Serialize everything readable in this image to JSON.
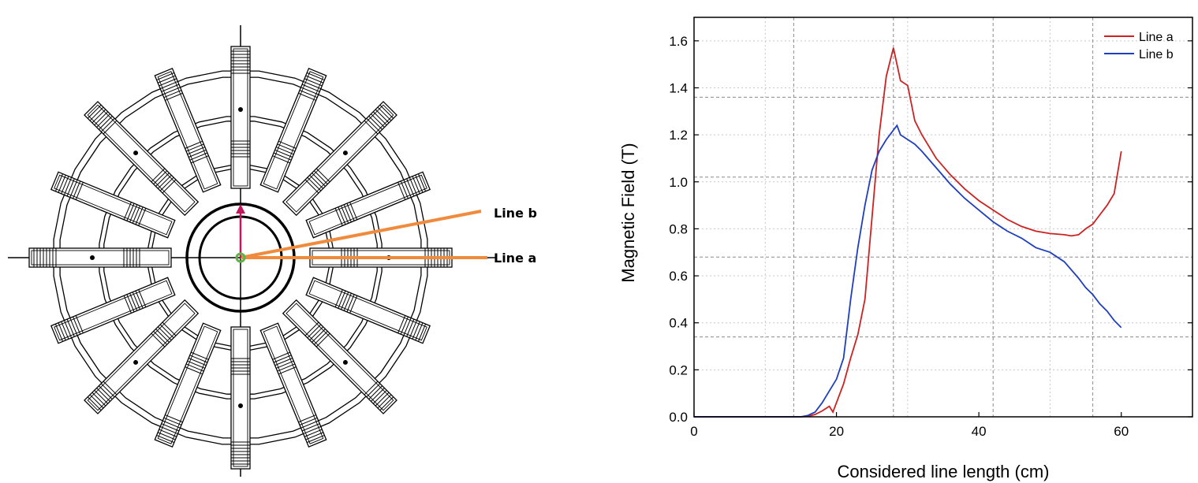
{
  "diagram": {
    "line_labels": [
      "Line b",
      "Line a"
    ],
    "colors": {
      "lines": "#f08a3c",
      "arrow": "#c2185b",
      "center": "#5fb34a",
      "structure": "#000000"
    },
    "coil_count": 16
  },
  "chart_data": {
    "type": "line",
    "title": "",
    "xlabel": "Considered line length (cm)",
    "ylabel": "Magnetic Field (T)",
    "xlim": [
      0,
      70
    ],
    "ylim": [
      0,
      1.7
    ],
    "xticks": [
      0,
      20,
      40,
      60
    ],
    "yticks": [
      0.0,
      0.2,
      0.4,
      0.6,
      0.8,
      1.0,
      1.2,
      1.4,
      1.6
    ],
    "ytick_labels": [
      "0.0",
      "0.2",
      "0.4",
      "0.6",
      "0.8",
      "1.0",
      "1.2",
      "1.4",
      "1.6"
    ],
    "grid": true,
    "legend_position": "top-right",
    "series": [
      {
        "name": "Line a",
        "color": "#cc2222",
        "x": [
          0,
          10,
          15,
          16,
          17,
          18,
          19,
          19.5,
          20,
          21,
          22,
          23,
          24,
          25,
          26,
          27,
          28,
          29,
          30,
          31,
          32,
          34,
          36,
          38,
          40,
          42,
          44,
          46,
          48,
          50,
          52,
          53,
          54,
          55,
          56,
          57,
          58,
          59,
          60
        ],
        "y": [
          0,
          0,
          0,
          0.002,
          0.01,
          0.025,
          0.045,
          0.02,
          0.06,
          0.14,
          0.25,
          0.35,
          0.5,
          0.85,
          1.2,
          1.45,
          1.57,
          1.43,
          1.41,
          1.26,
          1.2,
          1.1,
          1.03,
          0.97,
          0.92,
          0.88,
          0.84,
          0.81,
          0.79,
          0.78,
          0.775,
          0.77,
          0.775,
          0.8,
          0.82,
          0.86,
          0.9,
          0.95,
          1.13
        ]
      },
      {
        "name": "Line b",
        "color": "#1f3fbf",
        "x": [
          0,
          10,
          15,
          16,
          17,
          18,
          19,
          20,
          21,
          22,
          23,
          24,
          25,
          26,
          27,
          28,
          28.5,
          29,
          30,
          31,
          32,
          34,
          36,
          38,
          40,
          42,
          44,
          46,
          48,
          50,
          52,
          54,
          55,
          56,
          57,
          58,
          59,
          60
        ],
        "y": [
          0,
          0,
          0,
          0.006,
          0.02,
          0.06,
          0.11,
          0.16,
          0.25,
          0.5,
          0.72,
          0.9,
          1.05,
          1.13,
          1.18,
          1.22,
          1.24,
          1.2,
          1.18,
          1.16,
          1.13,
          1.06,
          0.99,
          0.93,
          0.88,
          0.83,
          0.79,
          0.76,
          0.72,
          0.7,
          0.66,
          0.59,
          0.55,
          0.52,
          0.48,
          0.45,
          0.41,
          0.38
        ]
      }
    ]
  }
}
